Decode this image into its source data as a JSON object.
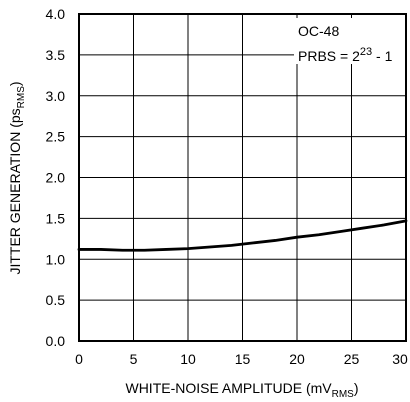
{
  "chart_data": {
    "type": "line",
    "x": [
      0,
      2,
      4,
      6,
      8,
      10,
      12,
      14,
      16,
      18,
      20,
      22,
      24,
      26,
      28,
      30
    ],
    "series": [
      {
        "values": [
          1.12,
          1.12,
          1.11,
          1.11,
          1.12,
          1.13,
          1.15,
          1.17,
          1.2,
          1.23,
          1.27,
          1.3,
          1.34,
          1.38,
          1.42,
          1.47
        ]
      }
    ],
    "xlabel_main": "WHITE-NOISE AMPLITUDE (mV",
    "xlabel_sub": "RMS",
    "xlabel_end": ")",
    "ylabel_main": "JITTER GENERATION (ps",
    "ylabel_sub": "RMS",
    "ylabel_end": ")",
    "xlim": [
      0,
      30
    ],
    "ylim": [
      0,
      4
    ],
    "xticks": [
      "0",
      "5",
      "10",
      "15",
      "20",
      "25",
      "30"
    ],
    "yticks": [
      "0.0",
      "0.5",
      "1.0",
      "1.5",
      "2.0",
      "2.5",
      "3.0",
      "3.5",
      "4.0"
    ],
    "annotation_line1": "OC-48",
    "annotation_line2_prefix": "PRBS = 2",
    "annotation_line2_sup": "23",
    "annotation_line2_suffix": " - 1",
    "grid": true,
    "line_color": "#000000"
  }
}
